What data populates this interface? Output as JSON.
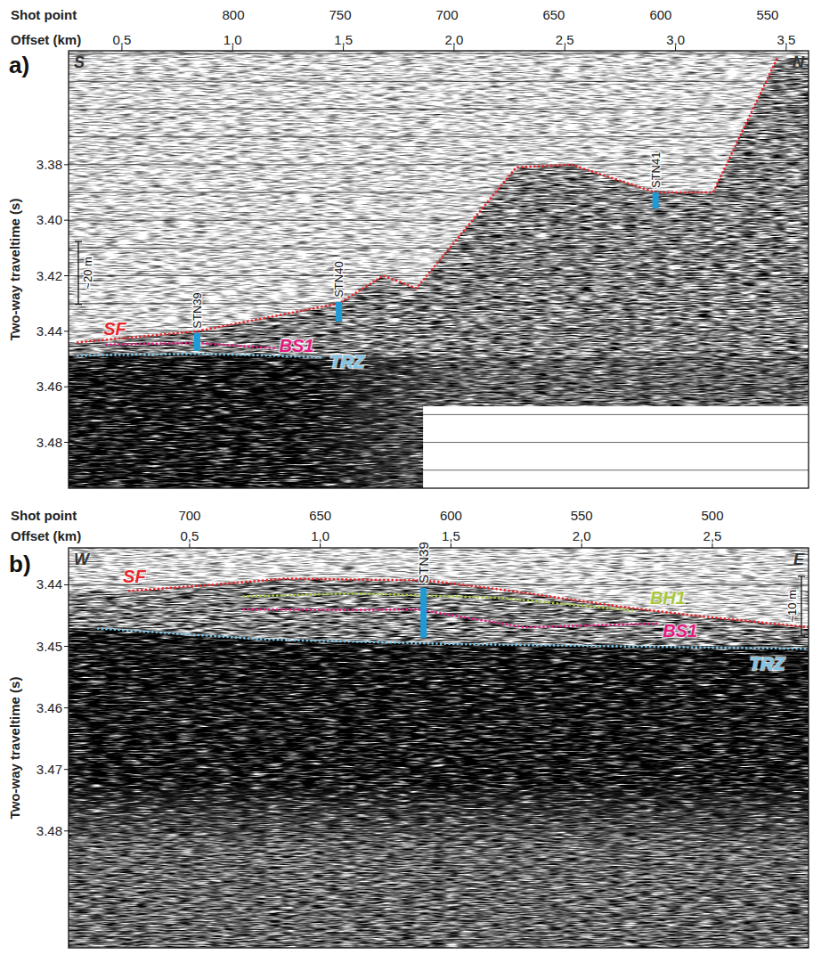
{
  "chart_data": [
    {
      "type": "line",
      "title": "a)",
      "ends": {
        "left": "S",
        "right": "N"
      },
      "x_label": "Offset (km)",
      "xlim": [
        0.259,
        3.601
      ],
      "xticks": [
        {
          "value": 0.5,
          "label": "0,5"
        },
        {
          "value": 1,
          "label": "1,0"
        },
        {
          "value": 1.5,
          "label": "1,5"
        },
        {
          "value": 2,
          "label": "2,0"
        },
        {
          "value": 2.5,
          "label": "2,5"
        },
        {
          "value": 3,
          "label": "3,0"
        },
        {
          "value": 3.5,
          "label": "3,5"
        }
      ],
      "x2_label": "Shot point",
      "x2lim": [
        877.1,
        530.8
      ],
      "x2ticks": [
        800,
        750,
        700,
        650,
        600,
        550
      ],
      "y_label": "Two-way traveltime (s)",
      "ylim": [
        3.4965,
        3.339
      ],
      "yticks": [
        3.38,
        {
          "value": 3.4,
          "label": "3.40"
        },
        3.42,
        3.44,
        3.46,
        3.48
      ],
      "grid": "minor",
      "series": [
        {
          "name": "SF",
          "color": "#e8262b",
          "line_style": "dotted",
          "x": [
            0.3,
            0.84,
            1.48,
            1.68,
            1.83,
            2.28,
            2.53,
            2.91,
            3.17,
            3.46
          ],
          "values": [
            3.444,
            3.44,
            3.43,
            3.42,
            3.4245,
            3.381,
            3.38,
            3.39,
            3.39,
            3.3416
          ]
        },
        {
          "name": "BS1",
          "color": "#e5197f",
          "line_style": "dotted",
          "x": [
            0.43,
            0.84,
            1.19
          ],
          "values": [
            3.4448,
            3.4442,
            3.4461
          ]
        },
        {
          "name": "TRZ",
          "color": "#7cc5e8",
          "line_style": "dotted",
          "x": [
            0.3,
            0.84,
            1.15,
            1.41
          ],
          "values": [
            3.4487,
            3.4481,
            3.4487,
            3.4494
          ]
        }
      ],
      "stations": [
        {
          "name": "STN39",
          "x": 0.84,
          "top": 3.4406,
          "bottom": 3.4471
        },
        {
          "name": "STN40",
          "x": 1.48,
          "top": 3.4294,
          "bottom": 3.4365
        },
        {
          "name": "STN41",
          "x": 2.91,
          "top": 3.39,
          "bottom": 3.3958
        }
      ],
      "scale_bar": {
        "label": "~20 m",
        "top": 3.4077,
        "bottom": 3.4303
      },
      "no_data": {
        "x": 1.86,
        "t": 3.467
      }
    },
    {
      "type": "line",
      "title": "b)",
      "ends": {
        "left": "W",
        "right": "E"
      },
      "x_label": "Offset (km)",
      "xlim": [
        0.037,
        2.868
      ],
      "xticks": [
        {
          "value": 0.5,
          "label": "0,5"
        },
        {
          "value": 1,
          "label": "1,0"
        },
        {
          "value": 1.5,
          "label": "1,5"
        },
        {
          "value": 2,
          "label": "2,0"
        },
        {
          "value": 2.5,
          "label": "2,5"
        }
      ],
      "x2_label": "Shot point",
      "x2lim": [
        746.3,
        463.2
      ],
      "x2ticks": [
        700,
        650,
        600,
        550,
        500
      ],
      "y_label": "Two-way traveltime (s)",
      "ylim": [
        3.499,
        3.434
      ],
      "yticks": [
        3.44,
        3.45,
        3.46,
        3.47,
        3.48
      ],
      "grid": true,
      "series": [
        {
          "name": "SF",
          "color": "#e8262b",
          "line_style": "dotted",
          "x": [
            0.269,
            0.558,
            0.864,
            1.408,
            1.68,
            2.156,
            2.43,
            2.866
          ],
          "values": [
            3.441,
            3.4401,
            3.439,
            3.4393,
            3.4407,
            3.4436,
            3.445,
            3.4469
          ]
        },
        {
          "name": "BH1",
          "color": "#a8c83c",
          "line_style": "dotted",
          "x": [
            0.707,
            1.13,
            1.68,
            2.2
          ],
          "values": [
            3.4419,
            3.4414,
            3.4421,
            3.4442
          ]
        },
        {
          "name": "BS1",
          "color": "#e5197f",
          "line_style": "dotted",
          "x": [
            0.707,
            1.13,
            1.37,
            1.78,
            2.29
          ],
          "values": [
            3.444,
            3.4441,
            3.444,
            3.4469,
            3.4463
          ]
        },
        {
          "name": "TRZ",
          "color": "#7cc5e8",
          "line_style": "dotted",
          "x": [
            0.15,
            0.8,
            1.48,
            2.156,
            2.868
          ],
          "values": [
            3.4471,
            3.4489,
            3.4496,
            3.45,
            3.4504
          ]
        }
      ],
      "stations": [
        {
          "name": "STN39",
          "x": 1.395,
          "top": 3.4405,
          "bottom": 3.4486
        }
      ],
      "scale_bar": {
        "label": "~10 m",
        "top": 3.4386,
        "bottom": 3.4483
      }
    }
  ]
}
